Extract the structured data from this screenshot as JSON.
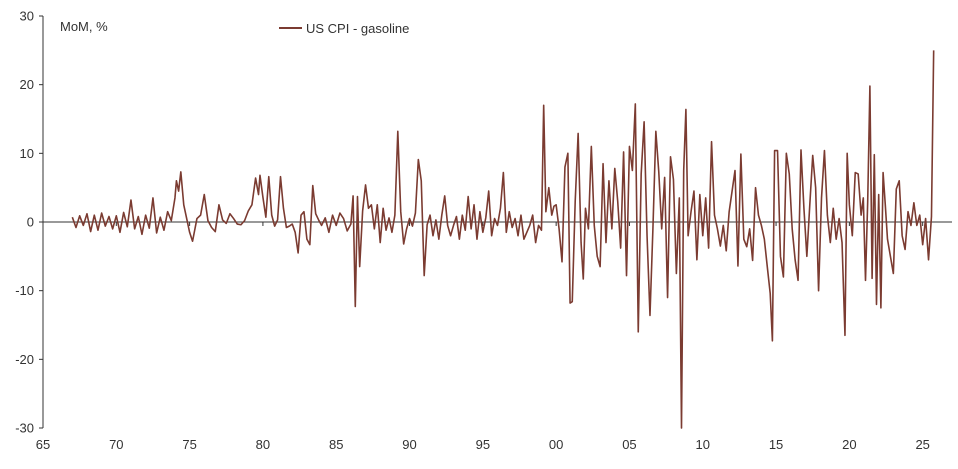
{
  "chart_data": {
    "type": "line",
    "title": "",
    "ylabel": "MoM, %",
    "xlabel": "",
    "xlim": [
      1965,
      2027
    ],
    "ylim": [
      -30,
      30
    ],
    "x_ticks": [
      1965,
      1970,
      1975,
      1980,
      1985,
      1990,
      1995,
      2000,
      2005,
      2010,
      2015,
      2020,
      2025
    ],
    "x_tick_labels": [
      "65",
      "70",
      "75",
      "80",
      "85",
      "90",
      "95",
      "00",
      "05",
      "10",
      "15",
      "20",
      "25"
    ],
    "y_ticks": [
      -30,
      -20,
      -10,
      0,
      10,
      20,
      30
    ],
    "y_tick_labels": [
      "-30",
      "-20",
      "-10",
      "0",
      "10",
      "20",
      "30"
    ],
    "grid": false,
    "legend_position": "top-center",
    "series": [
      {
        "name": "US CPI - gasoline",
        "color": "#7b3b31",
        "points": [
          [
            1967.0,
            0.7
          ],
          [
            1967.25,
            -0.8
          ],
          [
            1967.5,
            0.9
          ],
          [
            1967.75,
            -0.5
          ],
          [
            1968.0,
            1.2
          ],
          [
            1968.25,
            -1.4
          ],
          [
            1968.5,
            1.0
          ],
          [
            1968.75,
            -1.2
          ],
          [
            1969.0,
            1.3
          ],
          [
            1969.25,
            -0.6
          ],
          [
            1969.5,
            0.8
          ],
          [
            1969.75,
            -1.0
          ],
          [
            1970.0,
            0.9
          ],
          [
            1970.25,
            -1.5
          ],
          [
            1970.5,
            1.4
          ],
          [
            1970.75,
            -0.7
          ],
          [
            1971.0,
            3.2
          ],
          [
            1971.25,
            -1.0
          ],
          [
            1971.5,
            0.8
          ],
          [
            1971.75,
            -1.8
          ],
          [
            1972.0,
            1.0
          ],
          [
            1972.25,
            -0.9
          ],
          [
            1972.5,
            3.5
          ],
          [
            1972.75,
            -1.6
          ],
          [
            1973.0,
            0.7
          ],
          [
            1973.25,
            -1.2
          ],
          [
            1973.5,
            1.5
          ],
          [
            1973.75,
            0.2
          ],
          [
            1974.0,
            3.5
          ],
          [
            1974.1,
            6.0
          ],
          [
            1974.25,
            4.5
          ],
          [
            1974.4,
            7.3
          ],
          [
            1974.6,
            2.5
          ],
          [
            1974.8,
            0.5
          ],
          [
            1975.0,
            -1.5
          ],
          [
            1975.2,
            -2.8
          ],
          [
            1975.5,
            0.5
          ],
          [
            1975.75,
            1.0
          ],
          [
            1976.0,
            4.0
          ],
          [
            1976.25,
            0.2
          ],
          [
            1976.5,
            -0.8
          ],
          [
            1976.75,
            -1.4
          ],
          [
            1977.0,
            2.5
          ],
          [
            1977.25,
            0.3
          ],
          [
            1977.5,
            -0.2
          ],
          [
            1977.75,
            1.2
          ],
          [
            1978.0,
            0.5
          ],
          [
            1978.25,
            -0.3
          ],
          [
            1978.5,
            -0.4
          ],
          [
            1978.75,
            0.2
          ],
          [
            1979.0,
            1.6
          ],
          [
            1979.25,
            2.5
          ],
          [
            1979.5,
            6.4
          ],
          [
            1979.7,
            4.0
          ],
          [
            1979.8,
            6.8
          ],
          [
            1980.0,
            3.6
          ],
          [
            1980.2,
            0.7
          ],
          [
            1980.4,
            6.6
          ],
          [
            1980.6,
            1.0
          ],
          [
            1980.8,
            -0.6
          ],
          [
            1981.0,
            0.3
          ],
          [
            1981.2,
            6.6
          ],
          [
            1981.4,
            2.0
          ],
          [
            1981.6,
            -0.8
          ],
          [
            1981.8,
            -0.6
          ],
          [
            1982.0,
            -0.3
          ],
          [
            1982.2,
            -1.5
          ],
          [
            1982.4,
            -4.5
          ],
          [
            1982.6,
            1.0
          ],
          [
            1982.8,
            1.5
          ],
          [
            1983.0,
            -2.5
          ],
          [
            1983.2,
            -3.3
          ],
          [
            1983.4,
            5.3
          ],
          [
            1983.6,
            1.2
          ],
          [
            1983.8,
            0.3
          ],
          [
            1984.0,
            -0.5
          ],
          [
            1984.25,
            0.6
          ],
          [
            1984.5,
            -1.5
          ],
          [
            1984.75,
            1.0
          ],
          [
            1985.0,
            -0.5
          ],
          [
            1985.25,
            1.3
          ],
          [
            1985.5,
            0.5
          ],
          [
            1985.75,
            -1.3
          ],
          [
            1986.0,
            -0.3
          ],
          [
            1986.15,
            3.8
          ],
          [
            1986.3,
            -12.3
          ],
          [
            1986.45,
            3.7
          ],
          [
            1986.6,
            -6.5
          ],
          [
            1986.8,
            1.6
          ],
          [
            1987.0,
            5.4
          ],
          [
            1987.2,
            2.0
          ],
          [
            1987.4,
            2.5
          ],
          [
            1987.6,
            -1.0
          ],
          [
            1987.8,
            2.5
          ],
          [
            1988.0,
            -3.0
          ],
          [
            1988.2,
            2.0
          ],
          [
            1988.4,
            -1.2
          ],
          [
            1988.6,
            0.6
          ],
          [
            1988.8,
            -1.5
          ],
          [
            1989.0,
            1.0
          ],
          [
            1989.2,
            13.2
          ],
          [
            1989.4,
            1.5
          ],
          [
            1989.6,
            -3.2
          ],
          [
            1989.8,
            -1.0
          ],
          [
            1990.0,
            0.5
          ],
          [
            1990.2,
            -0.6
          ],
          [
            1990.4,
            1.3
          ],
          [
            1990.6,
            9.1
          ],
          [
            1990.8,
            6.0
          ],
          [
            1991.0,
            -7.8
          ],
          [
            1991.2,
            -0.4
          ],
          [
            1991.4,
            1.0
          ],
          [
            1991.6,
            -2.0
          ],
          [
            1991.8,
            0.3
          ],
          [
            1992.0,
            -2.5
          ],
          [
            1992.2,
            1.0
          ],
          [
            1992.4,
            3.8
          ],
          [
            1992.6,
            -0.5
          ],
          [
            1992.8,
            -2.0
          ],
          [
            1993.0,
            -0.5
          ],
          [
            1993.2,
            0.8
          ],
          [
            1993.4,
            -2.5
          ],
          [
            1993.6,
            1.0
          ],
          [
            1993.8,
            -1.2
          ],
          [
            1994.0,
            3.7
          ],
          [
            1994.2,
            -1.0
          ],
          [
            1994.4,
            2.5
          ],
          [
            1994.6,
            -2.5
          ],
          [
            1994.8,
            1.5
          ],
          [
            1995.0,
            -1.5
          ],
          [
            1995.2,
            0.6
          ],
          [
            1995.4,
            4.5
          ],
          [
            1995.6,
            -2.0
          ],
          [
            1995.8,
            0.5
          ],
          [
            1996.0,
            -0.5
          ],
          [
            1996.2,
            2.0
          ],
          [
            1996.4,
            7.2
          ],
          [
            1996.6,
            -1.5
          ],
          [
            1996.8,
            1.5
          ],
          [
            1997.0,
            -0.8
          ],
          [
            1997.2,
            0.5
          ],
          [
            1997.4,
            -2.0
          ],
          [
            1997.6,
            1.0
          ],
          [
            1997.8,
            -2.5
          ],
          [
            1998.0,
            -1.5
          ],
          [
            1998.2,
            -0.5
          ],
          [
            1998.4,
            1.0
          ],
          [
            1998.6,
            -3.0
          ],
          [
            1998.8,
            -0.5
          ],
          [
            1999.0,
            -1.2
          ],
          [
            1999.15,
            17.0
          ],
          [
            1999.3,
            1.5
          ],
          [
            1999.5,
            5.0
          ],
          [
            1999.7,
            1.0
          ],
          [
            1999.85,
            2.3
          ],
          [
            2000.0,
            2.5
          ],
          [
            2000.2,
            -1.0
          ],
          [
            2000.4,
            -5.8
          ],
          [
            2000.6,
            8.0
          ],
          [
            2000.8,
            10.0
          ],
          [
            2000.95,
            -11.8
          ],
          [
            2001.1,
            -11.6
          ],
          [
            2001.3,
            3.0
          ],
          [
            2001.5,
            12.9
          ],
          [
            2001.7,
            -3.0
          ],
          [
            2001.85,
            -8.3
          ],
          [
            2002.0,
            2.0
          ],
          [
            2002.2,
            -1.0
          ],
          [
            2002.4,
            11.0
          ],
          [
            2002.6,
            -0.5
          ],
          [
            2002.8,
            -5.0
          ],
          [
            2003.0,
            -6.5
          ],
          [
            2003.2,
            8.5
          ],
          [
            2003.4,
            -3.0
          ],
          [
            2003.6,
            6.0
          ],
          [
            2003.8,
            -1.0
          ],
          [
            2004.0,
            7.8
          ],
          [
            2004.2,
            3.0
          ],
          [
            2004.4,
            -3.8
          ],
          [
            2004.6,
            10.2
          ],
          [
            2004.8,
            -7.8
          ],
          [
            2005.0,
            11.0
          ],
          [
            2005.2,
            7.5
          ],
          [
            2005.4,
            17.2
          ],
          [
            2005.6,
            -16.0
          ],
          [
            2005.8,
            7.0
          ],
          [
            2006.0,
            14.6
          ],
          [
            2006.2,
            -2.0
          ],
          [
            2006.4,
            -13.6
          ],
          [
            2006.6,
            -1.0
          ],
          [
            2006.8,
            13.2
          ],
          [
            2007.0,
            7.3
          ],
          [
            2007.2,
            -1.0
          ],
          [
            2007.4,
            6.5
          ],
          [
            2007.6,
            -11.0
          ],
          [
            2007.8,
            9.5
          ],
          [
            2008.0,
            6.2
          ],
          [
            2008.2,
            -7.5
          ],
          [
            2008.4,
            3.5
          ],
          [
            2008.55,
            -30.0
          ],
          [
            2008.7,
            7.5
          ],
          [
            2008.85,
            16.4
          ],
          [
            2009.0,
            -2.0
          ],
          [
            2009.2,
            1.5
          ],
          [
            2009.4,
            4.5
          ],
          [
            2009.6,
            -5.5
          ],
          [
            2009.8,
            4.0
          ],
          [
            2010.0,
            -2.0
          ],
          [
            2010.2,
            3.5
          ],
          [
            2010.4,
            -3.8
          ],
          [
            2010.6,
            11.7
          ],
          [
            2010.8,
            1.0
          ],
          [
            2011.0,
            -1.0
          ],
          [
            2011.2,
            -3.5
          ],
          [
            2011.4,
            -0.5
          ],
          [
            2011.6,
            -4.2
          ],
          [
            2011.8,
            1.5
          ],
          [
            2012.0,
            4.5
          ],
          [
            2012.2,
            7.5
          ],
          [
            2012.4,
            -6.4
          ],
          [
            2012.6,
            9.9
          ],
          [
            2012.8,
            -2.5
          ],
          [
            2013.0,
            -3.6
          ],
          [
            2013.2,
            -1.0
          ],
          [
            2013.4,
            -5.6
          ],
          [
            2013.6,
            5.0
          ],
          [
            2013.8,
            1.0
          ],
          [
            2014.0,
            -0.5
          ],
          [
            2014.2,
            -2.5
          ],
          [
            2014.4,
            -6.5
          ],
          [
            2014.6,
            -10.4
          ],
          [
            2014.75,
            -17.3
          ],
          [
            2014.9,
            10.4
          ],
          [
            2015.1,
            10.4
          ],
          [
            2015.3,
            -5.0
          ],
          [
            2015.5,
            -8.0
          ],
          [
            2015.7,
            10.0
          ],
          [
            2015.9,
            7.0
          ],
          [
            2016.1,
            -1.0
          ],
          [
            2016.3,
            -5.5
          ],
          [
            2016.5,
            -8.5
          ],
          [
            2016.7,
            10.5
          ],
          [
            2016.9,
            2.0
          ],
          [
            2017.1,
            -5.0
          ],
          [
            2017.3,
            2.5
          ],
          [
            2017.5,
            9.7
          ],
          [
            2017.7,
            5.0
          ],
          [
            2017.9,
            -10.0
          ],
          [
            2018.1,
            3.5
          ],
          [
            2018.3,
            10.4
          ],
          [
            2018.5,
            1.0
          ],
          [
            2018.7,
            -3.0
          ],
          [
            2018.9,
            2.0
          ],
          [
            2019.1,
            -2.5
          ],
          [
            2019.3,
            0.5
          ],
          [
            2019.5,
            -3.0
          ],
          [
            2019.7,
            -16.5
          ],
          [
            2019.85,
            10.0
          ],
          [
            2020.0,
            2.5
          ],
          [
            2020.2,
            -2.0
          ],
          [
            2020.4,
            7.2
          ],
          [
            2020.6,
            7.0
          ],
          [
            2020.8,
            1.0
          ],
          [
            2020.95,
            3.5
          ],
          [
            2021.1,
            -8.5
          ],
          [
            2021.25,
            3.0
          ],
          [
            2021.4,
            19.8
          ],
          [
            2021.55,
            -8.2
          ],
          [
            2021.7,
            9.8
          ],
          [
            2021.85,
            -12.0
          ],
          [
            2022.0,
            4.0
          ],
          [
            2022.15,
            -12.5
          ],
          [
            2022.3,
            7.2
          ],
          [
            2022.45,
            2.5
          ],
          [
            2022.6,
            -2.5
          ],
          [
            2022.8,
            -5.0
          ],
          [
            2023.0,
            -7.5
          ],
          [
            2023.2,
            4.8
          ],
          [
            2023.4,
            6.0
          ],
          [
            2023.6,
            -2.0
          ],
          [
            2023.8,
            -4.0
          ],
          [
            2024.0,
            1.5
          ],
          [
            2024.2,
            -0.5
          ],
          [
            2024.4,
            2.8
          ],
          [
            2024.6,
            -0.5
          ],
          [
            2024.8,
            1.0
          ],
          [
            2025.0,
            -3.3
          ],
          [
            2025.2,
            0.5
          ],
          [
            2025.4,
            -5.5
          ],
          [
            2025.6,
            0.8
          ],
          [
            2025.75,
            25.0
          ]
        ]
      }
    ]
  }
}
